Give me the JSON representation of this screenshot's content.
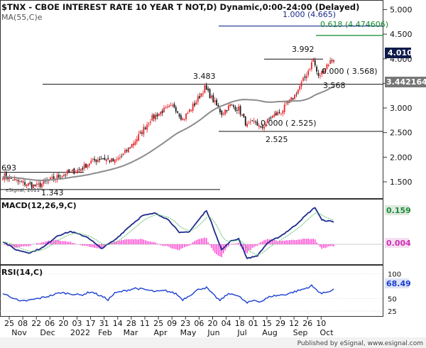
{
  "header": {
    "title": "$TNX - CBOE INTEREST RATE 10 YEAR T NOT,D) Dynamic,0:00-24:00 (Delayed)",
    "ma_label": "MA(55,C)e"
  },
  "footer": {
    "publisher": "Published by eSignal, www.esignal.com"
  },
  "watermark": "eSignal, 2011",
  "colors": {
    "up": "#e8242a",
    "down": "#1a1a1a",
    "ma": "#8c8c8c",
    "macd": "#1b2b8c",
    "signal": "#5fc06a",
    "hist": "#ff3fd2",
    "fib_green": "#0f8a2a",
    "fib_navy": "#1b2b8c",
    "rsi": "#1a3fd1"
  },
  "chart_data": [
    {
      "type": "candlestick",
      "title": "$TNX - CBOE INTEREST RATE 10 YEAR T NOT,D) Dynamic,0:00-24:00 (Delayed)",
      "ylim": [
        1.1,
        5.0
      ],
      "y_ticks": [
        "1.500",
        "2.000",
        "2.500",
        "3.000",
        "3.500",
        "4.000",
        "4.500",
        "5.000"
      ],
      "x_ticks": [
        "25",
        "08",
        "22",
        "06",
        "20",
        "03",
        "17",
        "31",
        "14",
        "28",
        "11",
        "25",
        "09",
        "23",
        "06",
        "20",
        "04",
        "18",
        "01",
        "15",
        "29",
        "12",
        "26",
        "10"
      ],
      "month_labels": [
        "Nov",
        "Dec",
        "2022",
        "Feb",
        "Mar",
        "Apr",
        "May",
        "Jun",
        "Jul",
        "Aug",
        "Sep",
        "Oct"
      ],
      "close_anchors": [
        [
          0,
          1.63
        ],
        [
          10,
          1.49
        ],
        [
          20,
          1.41
        ],
        [
          27,
          1.52
        ],
        [
          37,
          1.67
        ],
        [
          45,
          1.74
        ],
        [
          52,
          1.91
        ],
        [
          58,
          1.98
        ],
        [
          66,
          1.91
        ],
        [
          71,
          2.05
        ],
        [
          79,
          2.38
        ],
        [
          87,
          2.77
        ],
        [
          94,
          2.94
        ],
        [
          101,
          3.04
        ],
        [
          106,
          2.77
        ],
        [
          113,
          3.08
        ],
        [
          119,
          3.41
        ],
        [
          124,
          3.15
        ],
        [
          129,
          2.89
        ],
        [
          134,
          3.05
        ],
        [
          139,
          2.98
        ],
        [
          144,
          2.63
        ],
        [
          149,
          2.72
        ],
        [
          152,
          2.57
        ],
        [
          158,
          2.81
        ],
        [
          164,
          2.93
        ],
        [
          172,
          3.25
        ],
        [
          178,
          3.62
        ],
        [
          183,
          3.98
        ],
        [
          186,
          3.62
        ],
        [
          191,
          3.88
        ],
        [
          195,
          4.01
        ]
      ],
      "moving_average": {
        "label": "MA(55,C)e",
        "last_value": 3.442164,
        "last_label": "3.442164"
      },
      "last_price": {
        "value": 4.01,
        "label": "4.010"
      },
      "annotations": {
        "high_1": {
          "label": "3.483",
          "value": 3.483
        },
        "high_2": {
          "label": "3.992",
          "value": 3.992
        },
        "low_1": {
          "label": "2.525",
          "value": 2.525
        },
        "low_2": {
          "label": "3.568",
          "value": 3.568
        },
        "left_high": {
          "label": "693",
          "value": 1.693
        },
        "left_low": {
          "label": "1.343",
          "value": 1.343
        },
        "fib": [
          {
            "label": "0.618 (4.474606)",
            "value": 4.474606
          },
          {
            "label": "1.000 (4.665)",
            "value": 4.665
          },
          {
            "label": "0.000 ( 3.568)",
            "value": 3.568
          },
          {
            "label": "0.000 ( 2.525)",
            "value": 2.525
          }
        ]
      }
    },
    {
      "type": "line",
      "title": "MACD(12,26,9,C)",
      "macd_anchors": [
        [
          0,
          0.02
        ],
        [
          8,
          -0.04
        ],
        [
          16,
          -0.06
        ],
        [
          24,
          -0.02
        ],
        [
          32,
          0.06
        ],
        [
          40,
          0.09
        ],
        [
          50,
          0.05
        ],
        [
          58,
          -0.03
        ],
        [
          66,
          0.03
        ],
        [
          74,
          0.12
        ],
        [
          82,
          0.2
        ],
        [
          90,
          0.22
        ],
        [
          98,
          0.17
        ],
        [
          104,
          0.08
        ],
        [
          110,
          0.09
        ],
        [
          116,
          0.18
        ],
        [
          120,
          0.24
        ],
        [
          124,
          0.12
        ],
        [
          129,
          -0.04
        ],
        [
          134,
          0.02
        ],
        [
          139,
          0.04
        ],
        [
          144,
          -0.1
        ],
        [
          150,
          -0.08
        ],
        [
          156,
          0.01
        ],
        [
          164,
          0.06
        ],
        [
          172,
          0.13
        ],
        [
          180,
          0.22
        ],
        [
          184,
          0.26
        ],
        [
          188,
          0.17
        ],
        [
          195,
          0.159
        ]
      ],
      "macd_last": {
        "value": 0.159,
        "label": "0.159"
      },
      "hist_last": {
        "value": 0.004,
        "label": "0.004"
      }
    },
    {
      "type": "line",
      "title": "RSI(14,C)",
      "ylim": [
        20,
        110
      ],
      "y_ticks": [
        "25",
        "50",
        "100"
      ],
      "rsi_anchors": [
        [
          0,
          60
        ],
        [
          6,
          52
        ],
        [
          10,
          44
        ],
        [
          16,
          47
        ],
        [
          22,
          51
        ],
        [
          28,
          56
        ],
        [
          34,
          62
        ],
        [
          40,
          60
        ],
        [
          46,
          57
        ],
        [
          52,
          64
        ],
        [
          58,
          55
        ],
        [
          62,
          48
        ],
        [
          66,
          61
        ],
        [
          72,
          66
        ],
        [
          78,
          71
        ],
        [
          84,
          68
        ],
        [
          90,
          64
        ],
        [
          96,
          66
        ],
        [
          102,
          60
        ],
        [
          106,
          48
        ],
        [
          112,
          61
        ],
        [
          116,
          70
        ],
        [
          120,
          72
        ],
        [
          124,
          58
        ],
        [
          128,
          46
        ],
        [
          132,
          58
        ],
        [
          136,
          60
        ],
        [
          140,
          52
        ],
        [
          144,
          41
        ],
        [
          148,
          47
        ],
        [
          152,
          44
        ],
        [
          158,
          55
        ],
        [
          166,
          58
        ],
        [
          172,
          64
        ],
        [
          178,
          70
        ],
        [
          182,
          76
        ],
        [
          184,
          70
        ],
        [
          188,
          60
        ],
        [
          195,
          68.49
        ]
      ],
      "rsi_last": {
        "value": 68.49,
        "label": "68.49"
      }
    }
  ]
}
